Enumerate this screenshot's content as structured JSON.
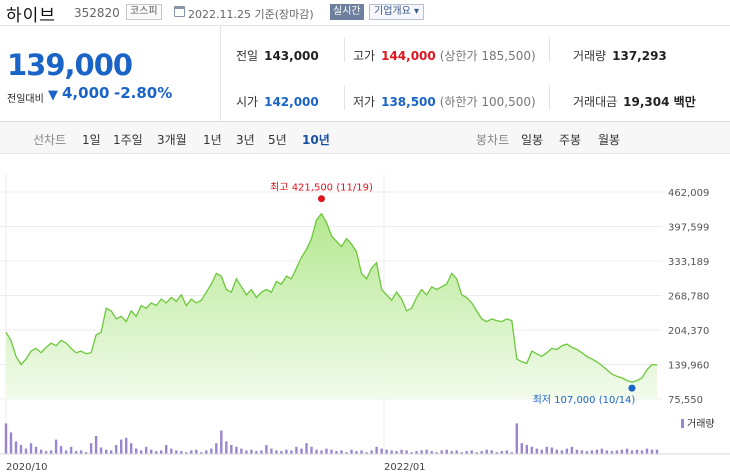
{
  "header": {
    "stock_name": "하이브",
    "stock_code": "352820",
    "market": "코스피",
    "date_label": "2022.11.25 기준(장마감)",
    "realtime_label": "실시간",
    "company_overview_label": "기업개요 ▾"
  },
  "quote": {
    "price": "139,000",
    "change_label": "전일대비",
    "change_value": "4,000",
    "change_pct": "-2.80%",
    "stats": {
      "prev_close_label": "전일",
      "prev_close": "143,000",
      "high_label": "고가",
      "high": "144,000",
      "upper_limit": "(상한가 185,500)",
      "volume_label": "거래량",
      "volume": "137,293",
      "open_label": "시가",
      "open": "142,000",
      "low_label": "저가",
      "low": "138,500",
      "lower_limit": "(하한가 100,500)",
      "turnover_label": "거래대금",
      "turnover": "19,304 백만"
    }
  },
  "tabs": {
    "line_chart_label": "선차트",
    "periods": [
      "1일",
      "1주일",
      "3개월",
      "1년",
      "3년",
      "5년",
      "10년"
    ],
    "active_period": "10년",
    "candle_label": "봉차트",
    "candles": [
      "일봉",
      "주봉",
      "월봉"
    ]
  },
  "chart_data": {
    "type": "area",
    "x_ticks": [
      "2020/10",
      "2022/01"
    ],
    "y_ticks": [
      "462,009",
      "397,599",
      "333,189",
      "268,780",
      "204,370",
      "139,960",
      "75,550"
    ],
    "ylim": [
      75550,
      462009
    ],
    "high_annotation": "최고 421,500 (11/19)",
    "low_annotation": "최저 107,000 (10/14)",
    "volume_legend": "거래량",
    "colors": {
      "line": "#6cc83a",
      "fill_top": "#b4e890",
      "fill_bottom": "#f2fbec",
      "volume": "#9a86cf"
    },
    "prices": [
      200000,
      185000,
      155000,
      140000,
      150000,
      165000,
      170000,
      162000,
      172000,
      180000,
      175000,
      185000,
      180000,
      170000,
      162000,
      165000,
      160000,
      162000,
      195000,
      200000,
      245000,
      240000,
      225000,
      230000,
      220000,
      240000,
      230000,
      250000,
      245000,
      255000,
      250000,
      262000,
      255000,
      265000,
      258000,
      270000,
      250000,
      262000,
      255000,
      260000,
      275000,
      290000,
      310000,
      305000,
      280000,
      275000,
      300000,
      285000,
      270000,
      280000,
      265000,
      275000,
      280000,
      275000,
      295000,
      290000,
      305000,
      300000,
      320000,
      340000,
      355000,
      375000,
      410000,
      421500,
      405000,
      380000,
      370000,
      360000,
      375000,
      365000,
      350000,
      310000,
      300000,
      320000,
      330000,
      280000,
      270000,
      260000,
      275000,
      262000,
      240000,
      245000,
      265000,
      280000,
      270000,
      285000,
      280000,
      285000,
      290000,
      310000,
      300000,
      270000,
      265000,
      255000,
      240000,
      225000,
      220000,
      225000,
      222000,
      220000,
      225000,
      222000,
      150000,
      145000,
      142000,
      165000,
      160000,
      155000,
      162000,
      170000,
      168000,
      175000,
      178000,
      172000,
      168000,
      162000,
      155000,
      150000,
      145000,
      138000,
      130000,
      122000,
      118000,
      115000,
      110000,
      107000,
      110000,
      115000,
      130000,
      140000,
      139000
    ],
    "volumes": [
      0.85,
      0.6,
      0.35,
      0.25,
      0.15,
      0.3,
      0.2,
      0.12,
      0.08,
      0.1,
      0.4,
      0.22,
      0.1,
      0.2,
      0.08,
      0.1,
      0.05,
      0.3,
      0.5,
      0.18,
      0.12,
      0.1,
      0.25,
      0.4,
      0.45,
      0.3,
      0.15,
      0.1,
      0.2,
      0.12,
      0.08,
      0.1,
      0.25,
      0.15,
      0.1,
      0.08,
      0.05,
      0.1,
      0.12,
      0.05,
      0.1,
      0.15,
      0.3,
      0.65,
      0.35,
      0.25,
      0.2,
      0.15,
      0.1,
      0.12,
      0.08,
      0.1,
      0.25,
      0.15,
      0.1,
      0.08,
      0.12,
      0.1,
      0.2,
      0.15,
      0.3,
      0.2,
      0.12,
      0.1,
      0.15,
      0.12,
      0.08,
      0.1,
      0.05,
      0.12,
      0.08,
      0.1,
      0.05,
      0.1,
      0.2,
      0.15,
      0.12,
      0.1,
      0.08,
      0.12,
      0.1,
      0.05,
      0.08,
      0.1,
      0.12,
      0.08,
      0.05,
      0.1,
      0.12,
      0.08,
      0.1,
      0.05,
      0.08,
      0.1,
      0.05,
      0.08,
      0.12,
      0.1,
      0.05,
      0.08,
      0.1,
      0.05,
      0.85,
      0.3,
      0.25,
      0.2,
      0.15,
      0.12,
      0.2,
      0.18,
      0.12,
      0.1,
      0.15,
      0.2,
      0.12,
      0.1,
      0.08,
      0.1,
      0.12,
      0.15,
      0.1,
      0.08,
      0.1,
      0.12,
      0.15,
      0.1,
      0.12,
      0.1,
      0.15,
      0.12,
      0.12
    ]
  }
}
